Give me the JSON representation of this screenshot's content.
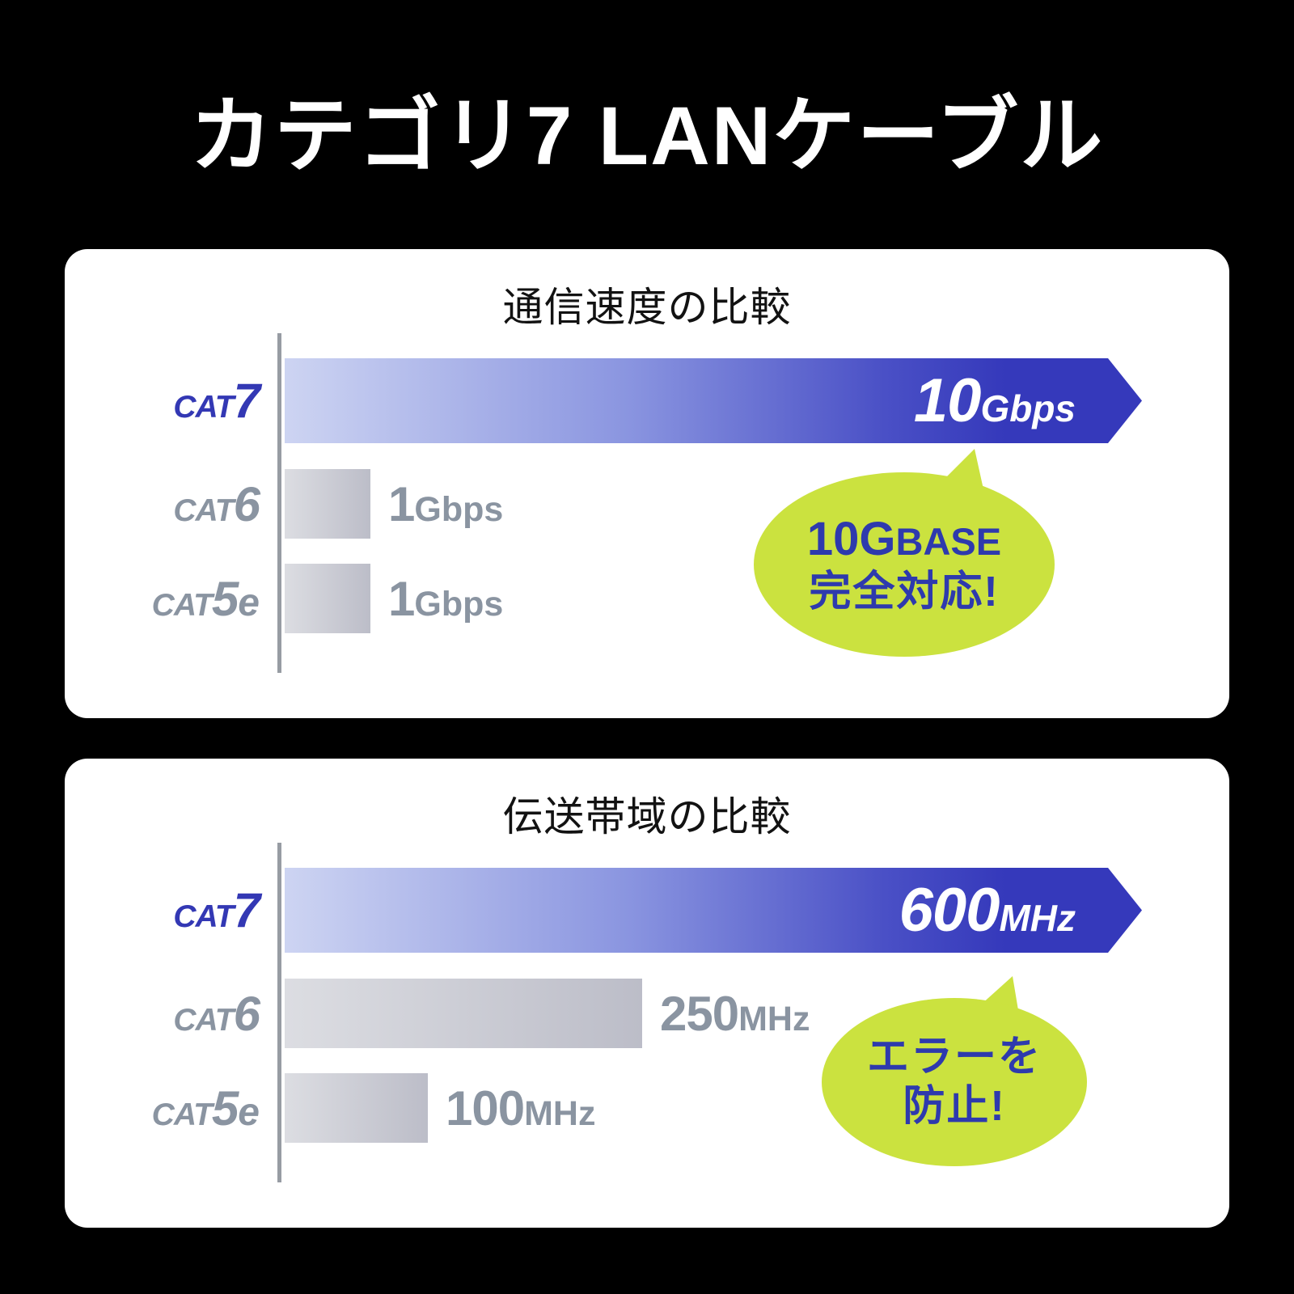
{
  "title": "カテゴリ7 LANケーブル",
  "colors": {
    "background": "#000000",
    "card": "#ffffff",
    "bar_blue_dark": "#3539bb",
    "bar_blue_light": "#cdd4f2",
    "bar_gray_light": "#dcdde2",
    "bar_gray_dark": "#bcbdc8",
    "axis_gray": "#979ca3",
    "label_gray": "#8a94a1",
    "label_blue": "#3338b4",
    "bubble_green": "#cbe23f",
    "bubble_text_blue": "#2e3aad"
  },
  "speed_chart": {
    "title": "通信速度の比較",
    "rows": [
      {
        "cat_prefix": "CAT",
        "cat_num": "7",
        "cat_suffix": "",
        "value": "10",
        "unit": "Gbps"
      },
      {
        "cat_prefix": "CAT",
        "cat_num": "6",
        "cat_suffix": "",
        "value": "1",
        "unit": "Gbps"
      },
      {
        "cat_prefix": "CAT",
        "cat_num": "5",
        "cat_suffix": "e",
        "value": "1",
        "unit": "Gbps"
      }
    ],
    "bubble": {
      "line1_big": "10G",
      "line1_small": "BASE",
      "line2": "完全対応!"
    }
  },
  "bandwidth_chart": {
    "title": "伝送帯域の比較",
    "rows": [
      {
        "cat_prefix": "CAT",
        "cat_num": "7",
        "cat_suffix": "",
        "value": "600",
        "unit": "MHz"
      },
      {
        "cat_prefix": "CAT",
        "cat_num": "6",
        "cat_suffix": "",
        "value": "250",
        "unit": "MHz"
      },
      {
        "cat_prefix": "CAT",
        "cat_num": "5",
        "cat_suffix": "e",
        "value": "100",
        "unit": "MHz"
      }
    ],
    "bubble": {
      "line1": "エラーを",
      "line2": "防止!"
    }
  },
  "chart_data": [
    {
      "type": "bar",
      "orientation": "horizontal",
      "title": "通信速度の比較",
      "categories": [
        "CAT7",
        "CAT6",
        "CAT5e"
      ],
      "values": [
        10,
        1,
        1
      ],
      "unit": "Gbps",
      "xlabel": "",
      "ylabel": "",
      "xlim": [
        0,
        10
      ],
      "grid": false,
      "highlight_category": "CAT7",
      "annotation": "10GBASE 完全対応!"
    },
    {
      "type": "bar",
      "orientation": "horizontal",
      "title": "伝送帯域の比較",
      "categories": [
        "CAT7",
        "CAT6",
        "CAT5e"
      ],
      "values": [
        600,
        250,
        100
      ],
      "unit": "MHz",
      "xlabel": "",
      "ylabel": "",
      "xlim": [
        0,
        600
      ],
      "grid": false,
      "highlight_category": "CAT7",
      "annotation": "エラーを防止!"
    }
  ]
}
